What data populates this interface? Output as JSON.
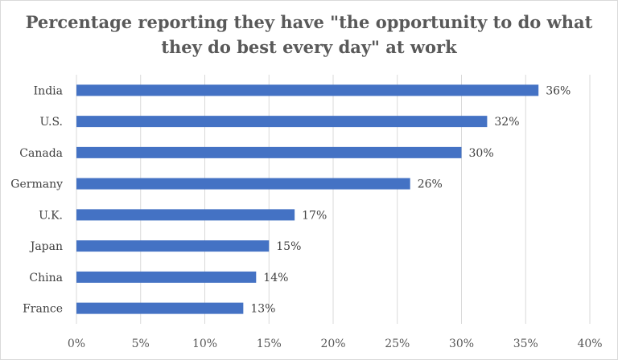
{
  "chart_data": {
    "type": "bar",
    "orientation": "horizontal",
    "title_line1": "Percentage reporting they have \"the opportunity to do what",
    "title_line2": "they do best every day\" at work",
    "categories": [
      "India",
      "U.S.",
      "Canada",
      "Germany",
      "U.K.",
      "Japan",
      "China",
      "France"
    ],
    "values": [
      36,
      32,
      30,
      26,
      17,
      15,
      14,
      13
    ],
    "data_labels": [
      "36%",
      "32%",
      "30%",
      "26%",
      "17%",
      "15%",
      "14%",
      "13%"
    ],
    "xlim": [
      0,
      40
    ],
    "xticks": [
      0,
      5,
      10,
      15,
      20,
      25,
      30,
      35,
      40
    ],
    "xtick_labels": [
      "0%",
      "5%",
      "10%",
      "15%",
      "20%",
      "25%",
      "30%",
      "35%",
      "40%"
    ],
    "grid": "vertical",
    "legend": "none",
    "bar_color": "#4472c4",
    "grid_color": "#d9d9d9"
  }
}
